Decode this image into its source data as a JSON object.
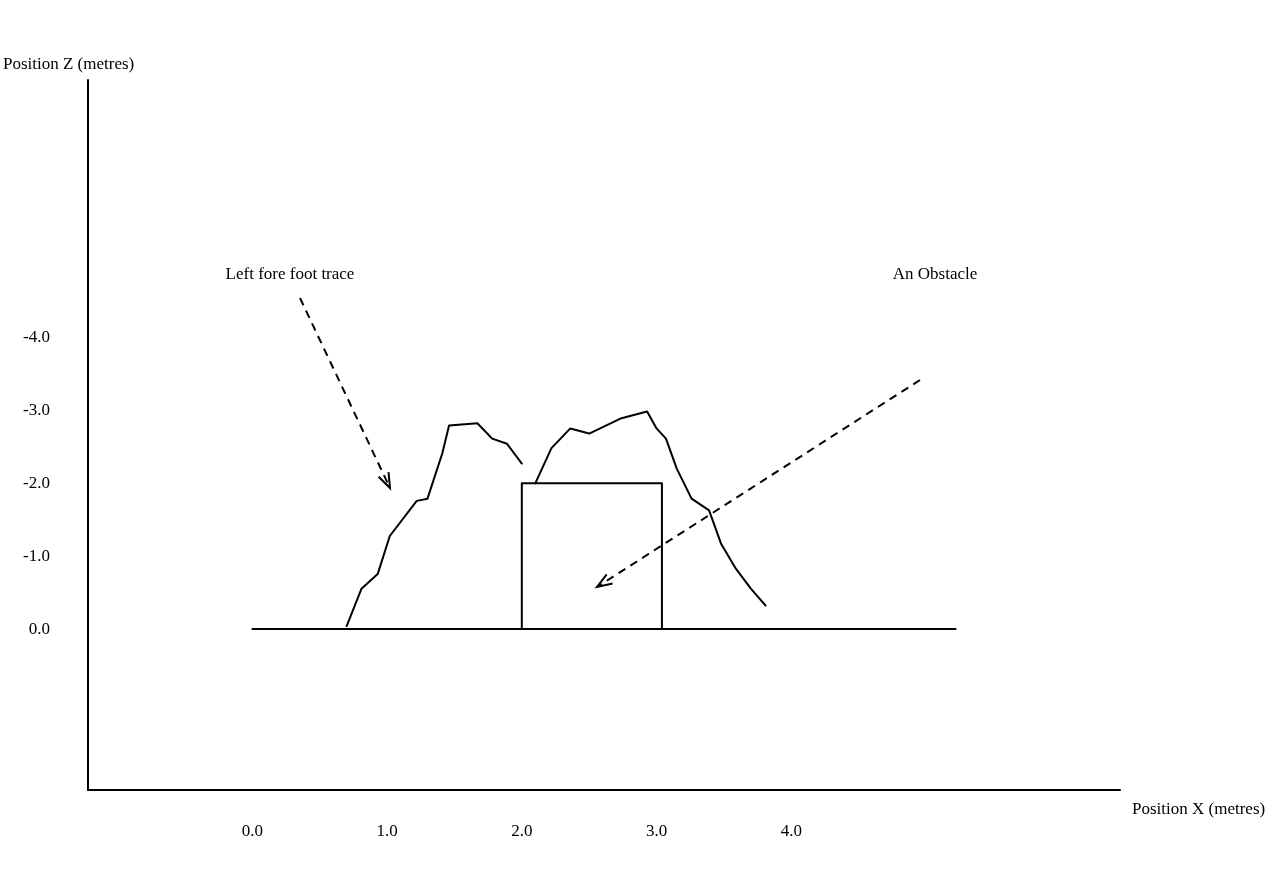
{
  "chart_data": {
    "type": "line",
    "xlabel": "Position X (metres)",
    "ylabel": "Position Z (metres)",
    "xlim": [
      -1.22,
      6.44
    ],
    "ylim": [
      2.2,
      -7.5
    ],
    "xticks": [
      {
        "value": 0,
        "label": "0.0"
      },
      {
        "value": 1,
        "label": "1.0"
      },
      {
        "value": 2,
        "label": "2.0"
      },
      {
        "value": 3,
        "label": "3.0"
      },
      {
        "value": 4,
        "label": "4.0"
      }
    ],
    "yticks": [
      {
        "value": 0,
        "label": "0.0"
      },
      {
        "value": -1,
        "label": "-1.0"
      },
      {
        "value": -2,
        "label": "-2.0"
      },
      {
        "value": -3,
        "label": "-3.0"
      },
      {
        "value": -4,
        "label": "-4.0"
      }
    ],
    "grid": false,
    "marker": "none",
    "line_style": "solid",
    "series": [
      {
        "color": "#000000",
        "x": [
          0.7,
          0.81,
          0.93,
          1.02,
          1.22,
          1.3,
          1.41,
          1.46,
          1.67,
          1.78,
          1.89,
          2.0,
          2.05,
          2.1,
          2.22,
          2.36,
          2.5,
          2.74,
          2.93,
          3.0,
          3.07,
          3.15,
          3.26,
          3.39,
          3.48,
          3.59,
          3.7,
          3.81
        ],
        "values": [
          -0.04,
          -0.55,
          -0.75,
          -1.27,
          -1.75,
          -1.78,
          -2.4,
          -2.78,
          -2.81,
          -2.6,
          -2.53,
          -2.26,
          null,
          -1.99,
          -2.47,
          -2.74,
          -2.67,
          -2.88,
          -2.97,
          -2.74,
          -2.6,
          -2.19,
          -1.78,
          -1.62,
          -1.16,
          -0.82,
          -0.55,
          -0.32
        ]
      },
      {
        "color": "#000000",
        "x": [
          0,
          5.22
        ],
        "values": [
          0,
          0
        ]
      },
      {
        "color": "#000000",
        "x": [
          2.0,
          2.0,
          3.04,
          3.04
        ],
        "values": [
          0,
          -1.99,
          -1.99,
          0
        ]
      }
    ],
    "annotations": [
      "Left fore foot trace",
      "An Obstacle"
    ]
  }
}
